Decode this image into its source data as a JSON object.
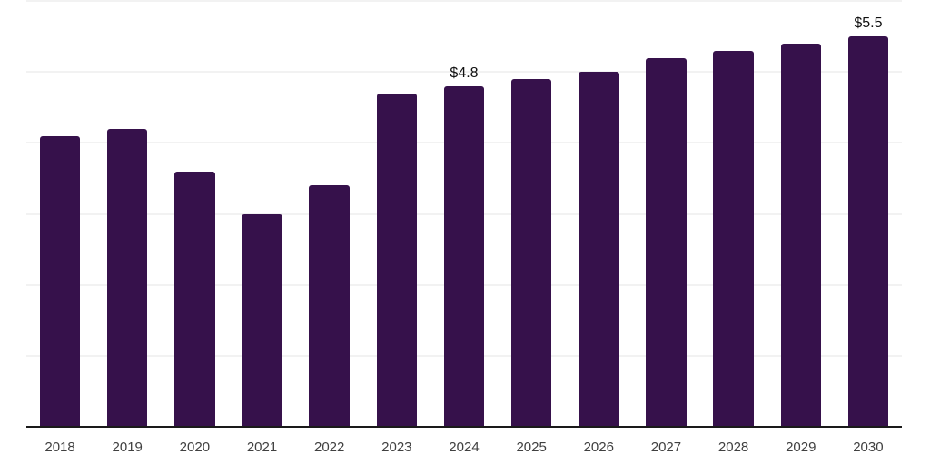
{
  "chart_data": {
    "type": "bar",
    "title": "",
    "xlabel": "",
    "ylabel": "",
    "categories": [
      "2018",
      "2019",
      "2020",
      "2021",
      "2022",
      "2023",
      "2024",
      "2025",
      "2026",
      "2027",
      "2028",
      "2029",
      "2030"
    ],
    "values": [
      4.1,
      4.2,
      3.6,
      3.0,
      3.4,
      4.7,
      4.8,
      4.9,
      5.0,
      5.2,
      5.3,
      5.4,
      5.5
    ],
    "bar_labels": [
      "",
      "",
      "",
      "",
      "",
      "",
      "$4.8",
      "",
      "",
      "",
      "",
      "",
      "$5.5"
    ],
    "ylim": [
      0,
      6
    ],
    "grid": true,
    "gridline_values": [
      1,
      2,
      3,
      4,
      5,
      6
    ],
    "legend": "none",
    "colors": {
      "bar": "#36114B",
      "gridline": "#f2f2f2",
      "axis_line": "#1a1a1a",
      "x_label": "#404040",
      "data_label": "#111111",
      "background": "#ffffff"
    }
  }
}
